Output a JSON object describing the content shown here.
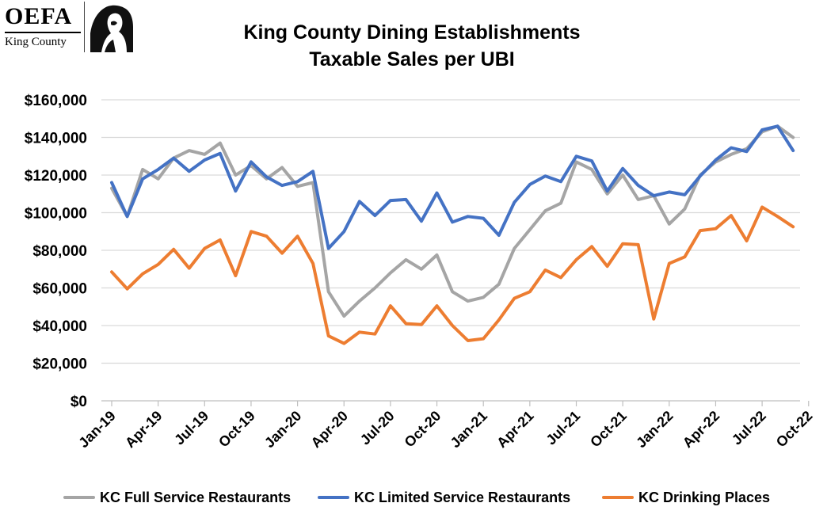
{
  "logo": {
    "org": "OEFA",
    "sub": "King County",
    "mark_icon": "silhouette-portrait-icon"
  },
  "chart_data": {
    "type": "line",
    "title": "King County Dining Establishments",
    "subtitle": "Taxable Sales per UBI",
    "xlabel": "",
    "ylabel": "",
    "ylim": [
      0,
      160000
    ],
    "yticks": [
      0,
      20000,
      40000,
      60000,
      80000,
      100000,
      120000,
      140000,
      160000
    ],
    "ytick_labels": [
      "$0",
      "$20,000",
      "$40,000",
      "$60,000",
      "$80,000",
      "$100,000",
      "$120,000",
      "$140,000",
      "$160,000"
    ],
    "grid": "horizontal",
    "legend_position": "bottom",
    "x_labels": [
      "Jan-19",
      "Apr-19",
      "Jul-19",
      "Oct-19",
      "Jan-20",
      "Apr-20",
      "Jul-20",
      "Oct-20",
      "Jan-21",
      "Apr-21",
      "Jul-21",
      "Oct-21",
      "Jan-22",
      "Apr-22",
      "Jul-22",
      "Oct-22"
    ],
    "x_label_interval_months": 3,
    "categories": [
      "Jan-19",
      "Feb-19",
      "Mar-19",
      "Apr-19",
      "May-19",
      "Jun-19",
      "Jul-19",
      "Aug-19",
      "Sep-19",
      "Oct-19",
      "Nov-19",
      "Dec-19",
      "Jan-20",
      "Feb-20",
      "Mar-20",
      "Apr-20",
      "May-20",
      "Jun-20",
      "Jul-20",
      "Aug-20",
      "Sep-20",
      "Oct-20",
      "Nov-20",
      "Dec-20",
      "Jan-21",
      "Feb-21",
      "Mar-21",
      "Apr-21",
      "May-21",
      "Jun-21",
      "Jul-21",
      "Aug-21",
      "Sep-21",
      "Oct-21",
      "Nov-21",
      "Dec-21",
      "Jan-22",
      "Feb-22",
      "Mar-22",
      "Apr-22",
      "May-22",
      "Jun-22",
      "Jul-22",
      "Aug-22",
      "Sep-22"
    ],
    "series": [
      {
        "name": "KC Full Service Restaurants",
        "color": "#a5a5a5",
        "values": [
          113000,
          98000,
          123000,
          118000,
          129000,
          133000,
          131000,
          137000,
          120000,
          125000,
          118000,
          124000,
          114000,
          116000,
          58000,
          45000,
          53000,
          60000,
          68000,
          75000,
          70000,
          77500,
          58000,
          53000,
          55000,
          62000,
          81000,
          91000,
          101000,
          105000,
          127000,
          123000,
          110000,
          120000,
          107000,
          109000,
          94000,
          102000,
          120000,
          127000,
          131000,
          134000,
          143000,
          146000,
          140000
        ]
      },
      {
        "name": "KC Limited Service Restaurants",
        "color": "#4472c4",
        "values": [
          116000,
          98000,
          118000,
          123000,
          129000,
          122000,
          128000,
          131500,
          111500,
          127000,
          119000,
          114500,
          116500,
          122000,
          81000,
          90000,
          106000,
          98500,
          106500,
          107000,
          95500,
          110500,
          95000,
          98000,
          97000,
          88000,
          105500,
          115000,
          119500,
          116500,
          130000,
          127500,
          111500,
          123500,
          114500,
          109000,
          111000,
          109500,
          119500,
          128000,
          134500,
          132500,
          144000,
          146000,
          133000
        ]
      },
      {
        "name": "KC Drinking Places",
        "color": "#ed7d31",
        "values": [
          68500,
          59500,
          67500,
          72500,
          80500,
          70500,
          81000,
          85500,
          66500,
          90000,
          87500,
          78500,
          87500,
          73000,
          34500,
          30500,
          36500,
          35500,
          50500,
          41000,
          40500,
          50500,
          40000,
          32000,
          33000,
          43000,
          54500,
          58000,
          69500,
          65500,
          75000,
          82000,
          71500,
          83500,
          83000,
          43500,
          73000,
          76500,
          90500,
          91500,
          98500,
          85000,
          103000,
          98000,
          92500
        ]
      }
    ]
  }
}
